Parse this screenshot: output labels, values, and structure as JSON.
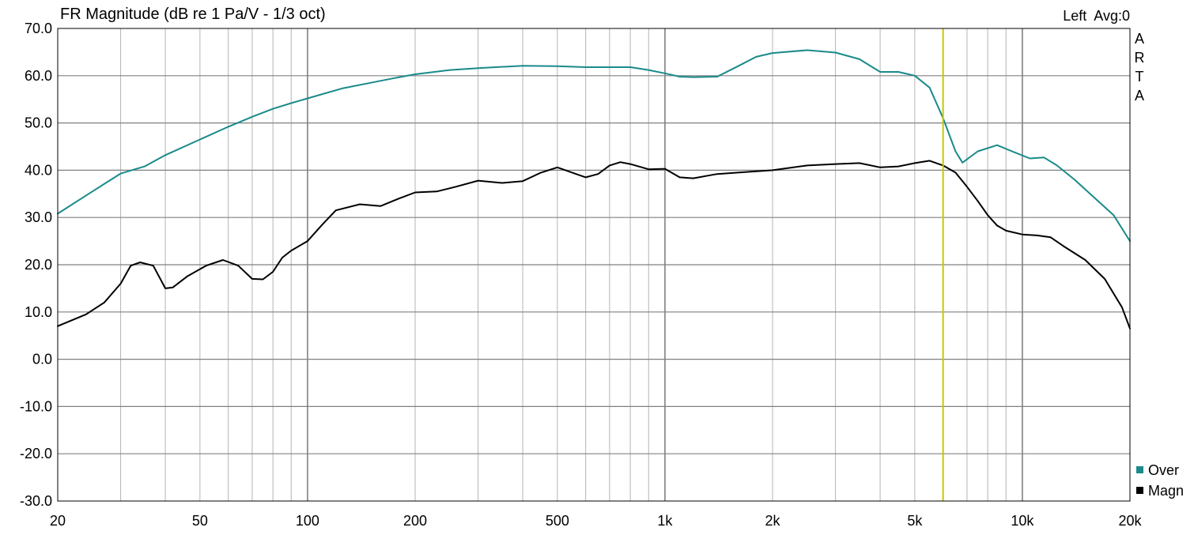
{
  "chart_data": {
    "type": "line",
    "title": "FR Magnitude (dB re 1 Pa/V - 1/3 oct)",
    "channel_label": "Left  Avg:0",
    "watermark": [
      "A",
      "R",
      "T",
      "A"
    ],
    "x_scale": "log",
    "xlim": [
      20,
      20000
    ],
    "ylim": [
      -30,
      70
    ],
    "x_tick_values": [
      20,
      50,
      100,
      200,
      500,
      1000,
      2000,
      5000,
      10000,
      20000
    ],
    "x_tick_labels": [
      "20",
      "50",
      "100",
      "200",
      "500",
      "1k",
      "2k",
      "5k",
      "10k",
      "20k"
    ],
    "y_ticks": [
      "70.0",
      "60.0",
      "50.0",
      "40.0",
      "30.0",
      "20.0",
      "10.0",
      "0.0",
      "-10.0",
      "-20.0",
      "-30.0"
    ],
    "grid": true,
    "cursor_x": 6000,
    "cursor_color": "#c8c800",
    "legend_position": "bottom-right",
    "series": [
      {
        "name": "Over",
        "color": "#1a8a8a",
        "points": [
          [
            20,
            30.8
          ],
          [
            25,
            35.5
          ],
          [
            30,
            39.3
          ],
          [
            35,
            40.8
          ],
          [
            40,
            43.2
          ],
          [
            50,
            46.5
          ],
          [
            60,
            49.2
          ],
          [
            70,
            51.3
          ],
          [
            80,
            53.0
          ],
          [
            90,
            54.2
          ],
          [
            100,
            55.2
          ],
          [
            125,
            57.3
          ],
          [
            150,
            58.5
          ],
          [
            175,
            59.5
          ],
          [
            200,
            60.3
          ],
          [
            250,
            61.2
          ],
          [
            300,
            61.6
          ],
          [
            400,
            62.1
          ],
          [
            500,
            62.0
          ],
          [
            600,
            61.8
          ],
          [
            700,
            61.8
          ],
          [
            800,
            61.8
          ],
          [
            900,
            61.2
          ],
          [
            1000,
            60.5
          ],
          [
            1100,
            59.8
          ],
          [
            1200,
            59.7
          ],
          [
            1400,
            59.8
          ],
          [
            1600,
            62.0
          ],
          [
            1800,
            64.0
          ],
          [
            2000,
            64.8
          ],
          [
            2500,
            65.4
          ],
          [
            3000,
            64.9
          ],
          [
            3500,
            63.5
          ],
          [
            4000,
            60.8
          ],
          [
            4500,
            60.8
          ],
          [
            5000,
            60.0
          ],
          [
            5500,
            57.5
          ],
          [
            6000,
            51.0
          ],
          [
            6500,
            44.0
          ],
          [
            6800,
            41.6
          ],
          [
            7500,
            44.0
          ],
          [
            8500,
            45.3
          ],
          [
            9500,
            43.8
          ],
          [
            10500,
            42.5
          ],
          [
            11500,
            42.7
          ],
          [
            12500,
            41.0
          ],
          [
            14000,
            38.0
          ],
          [
            16000,
            34.0
          ],
          [
            18000,
            30.5
          ],
          [
            20000,
            25.0
          ]
        ]
      },
      {
        "name": "Magn",
        "color": "#000000",
        "points": [
          [
            20,
            7.0
          ],
          [
            24,
            9.5
          ],
          [
            27,
            12.0
          ],
          [
            30,
            16.0
          ],
          [
            32,
            19.8
          ],
          [
            34,
            20.5
          ],
          [
            37,
            19.8
          ],
          [
            40,
            15.0
          ],
          [
            42,
            15.2
          ],
          [
            46,
            17.5
          ],
          [
            52,
            19.8
          ],
          [
            58,
            21.0
          ],
          [
            64,
            19.8
          ],
          [
            70,
            17.0
          ],
          [
            75,
            16.9
          ],
          [
            80,
            18.5
          ],
          [
            85,
            21.5
          ],
          [
            90,
            23.0
          ],
          [
            100,
            25.0
          ],
          [
            110,
            28.5
          ],
          [
            120,
            31.5
          ],
          [
            140,
            32.8
          ],
          [
            160,
            32.4
          ],
          [
            180,
            34.0
          ],
          [
            200,
            35.3
          ],
          [
            230,
            35.5
          ],
          [
            260,
            36.5
          ],
          [
            300,
            37.8
          ],
          [
            350,
            37.3
          ],
          [
            400,
            37.7
          ],
          [
            450,
            39.5
          ],
          [
            500,
            40.6
          ],
          [
            550,
            39.5
          ],
          [
            600,
            38.5
          ],
          [
            650,
            39.2
          ],
          [
            700,
            41.0
          ],
          [
            750,
            41.7
          ],
          [
            800,
            41.3
          ],
          [
            900,
            40.2
          ],
          [
            1000,
            40.3
          ],
          [
            1100,
            38.5
          ],
          [
            1200,
            38.3
          ],
          [
            1400,
            39.2
          ],
          [
            1600,
            39.5
          ],
          [
            2000,
            40.0
          ],
          [
            2500,
            41.0
          ],
          [
            3000,
            41.3
          ],
          [
            3500,
            41.5
          ],
          [
            4000,
            40.6
          ],
          [
            4500,
            40.8
          ],
          [
            5000,
            41.5
          ],
          [
            5500,
            42.0
          ],
          [
            6000,
            41.0
          ],
          [
            6500,
            39.5
          ],
          [
            7000,
            36.5
          ],
          [
            7500,
            33.5
          ],
          [
            8000,
            30.5
          ],
          [
            8500,
            28.3
          ],
          [
            9000,
            27.2
          ],
          [
            10000,
            26.4
          ],
          [
            11000,
            26.2
          ],
          [
            12000,
            25.8
          ],
          [
            13000,
            24.0
          ],
          [
            15000,
            21.0
          ],
          [
            17000,
            17.0
          ],
          [
            19000,
            11.0
          ],
          [
            20000,
            6.5
          ]
        ]
      }
    ]
  }
}
